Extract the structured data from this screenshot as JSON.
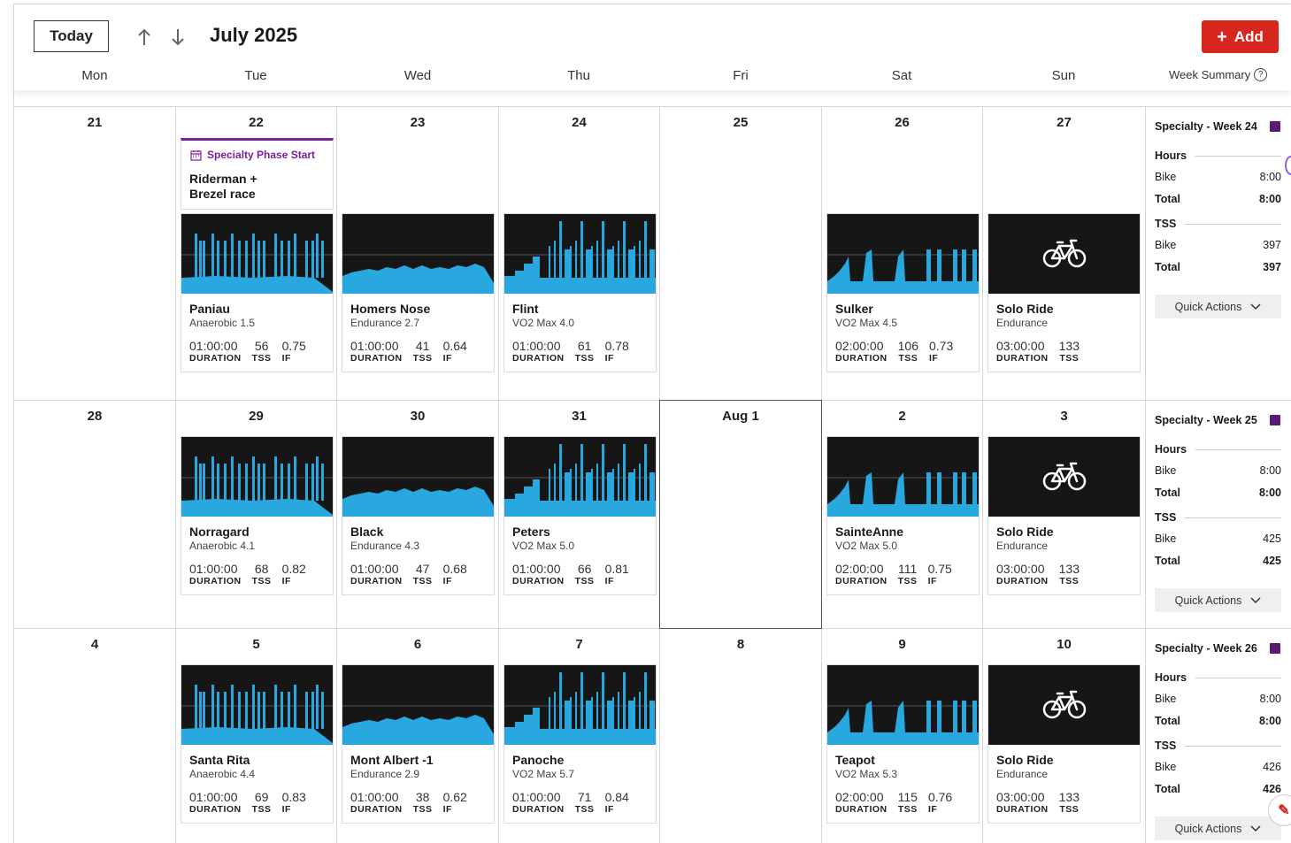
{
  "header": {
    "today_label": "Today",
    "month_title": "July 2025",
    "add_label": "Add",
    "week_summary_label": "Week Summary",
    "days": [
      "Mon",
      "Tue",
      "Wed",
      "Thu",
      "Fri",
      "Sat",
      "Sun"
    ]
  },
  "colors": {
    "accent": "#d7261e",
    "phase": "#7b1fa2",
    "graph_bg": "#161616",
    "graph_fill": "#29a8e0"
  },
  "labels": {
    "duration": "DURATION",
    "tss": "TSS",
    "if": "IF"
  },
  "weeks": [
    {
      "day_numbers": [
        "21",
        "22",
        "23",
        "24",
        "25",
        "26",
        "27"
      ],
      "event": {
        "tag": "Specialty Phase Start",
        "title": "Riderman +\nBrezel race"
      },
      "workouts": {
        "tue": {
          "name": "Paniau",
          "type": "Anaerobic 1.5",
          "duration": "01:00:00",
          "tss": "56",
          "if": "0.75",
          "graph": "anaerobic-graph"
        },
        "wed": {
          "name": "Homers Nose",
          "type": "Endurance 2.7",
          "duration": "01:00:00",
          "tss": "41",
          "if": "0.64",
          "graph": "endurance-graph"
        },
        "thu": {
          "name": "Flint",
          "type": "VO2 Max 4.0",
          "duration": "01:00:00",
          "tss": "61",
          "if": "0.78",
          "graph": "vo2max-graph"
        },
        "sat": {
          "name": "Sulker",
          "type": "VO2 Max 4.5",
          "duration": "02:00:00",
          "tss": "106",
          "if": "0.73",
          "graph": "vo2max-long-graph"
        },
        "sun": {
          "name": "Solo Ride",
          "type": "Endurance",
          "duration": "03:00:00",
          "tss": "133",
          "graph": "bicycle-icon"
        }
      },
      "summary": {
        "title": "Specialty - Week 24",
        "hours_label": "Hours",
        "bike_label": "Bike",
        "total_label": "Total",
        "hours_bike": "8:00",
        "hours_total": "8:00",
        "tss_label": "TSS",
        "tss_bike": "397",
        "tss_total": "397",
        "quick_actions": "Quick Actions"
      }
    },
    {
      "day_numbers": [
        "28",
        "29",
        "30",
        "31",
        "Aug 1",
        "2",
        "3"
      ],
      "workouts": {
        "tue": {
          "name": "Norragard",
          "type": "Anaerobic 4.1",
          "duration": "01:00:00",
          "tss": "68",
          "if": "0.82",
          "graph": "anaerobic-graph"
        },
        "wed": {
          "name": "Black",
          "type": "Endurance 4.3",
          "duration": "01:00:00",
          "tss": "47",
          "if": "0.68",
          "graph": "endurance-graph"
        },
        "thu": {
          "name": "Peters",
          "type": "VO2 Max 5.0",
          "duration": "01:00:00",
          "tss": "66",
          "if": "0.81",
          "graph": "vo2max-graph"
        },
        "sat": {
          "name": "SainteAnne",
          "type": "VO2 Max 5.0",
          "duration": "02:00:00",
          "tss": "111",
          "if": "0.75",
          "graph": "vo2max-long-graph"
        },
        "sun": {
          "name": "Solo Ride",
          "type": "Endurance",
          "duration": "03:00:00",
          "tss": "133",
          "graph": "bicycle-icon"
        }
      },
      "summary": {
        "title": "Specialty - Week 25",
        "hours_label": "Hours",
        "bike_label": "Bike",
        "total_label": "Total",
        "hours_bike": "8:00",
        "hours_total": "8:00",
        "tss_label": "TSS",
        "tss_bike": "425",
        "tss_total": "425",
        "quick_actions": "Quick Actions"
      }
    },
    {
      "day_numbers": [
        "4",
        "5",
        "6",
        "7",
        "8",
        "9",
        "10"
      ],
      "workouts": {
        "tue": {
          "name": "Santa Rita",
          "type": "Anaerobic 4.4",
          "duration": "01:00:00",
          "tss": "69",
          "if": "0.83",
          "graph": "anaerobic-graph"
        },
        "wed": {
          "name": "Mont Albert -1",
          "type": "Endurance 2.9",
          "duration": "01:00:00",
          "tss": "38",
          "if": "0.62",
          "graph": "endurance-graph"
        },
        "thu": {
          "name": "Panoche",
          "type": "VO2 Max 5.7",
          "duration": "01:00:00",
          "tss": "71",
          "if": "0.84",
          "graph": "vo2max-graph"
        },
        "sat": {
          "name": "Teapot",
          "type": "VO2 Max 5.3",
          "duration": "02:00:00",
          "tss": "115",
          "if": "0.76",
          "graph": "vo2max-long-graph"
        },
        "sun": {
          "name": "Solo Ride",
          "type": "Endurance",
          "duration": "03:00:00",
          "tss": "133",
          "graph": "bicycle-icon"
        }
      },
      "summary": {
        "title": "Specialty - Week 26",
        "hours_label": "Hours",
        "bike_label": "Bike",
        "total_label": "Total",
        "hours_bike": "8:00",
        "hours_total": "8:00",
        "tss_label": "TSS",
        "tss_bike": "426",
        "tss_total": "426",
        "quick_actions": "Quick Actions"
      }
    }
  ]
}
